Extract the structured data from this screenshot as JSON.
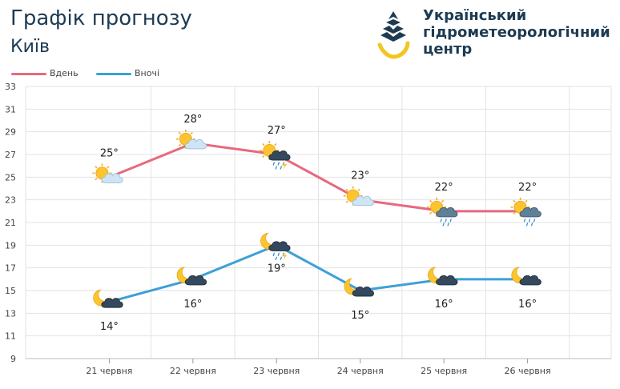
{
  "header": {
    "title": "Графік прогнозу",
    "city": "Київ"
  },
  "org": {
    "line1": "Український",
    "line2": "гідрометеорологічний",
    "line3": "центр"
  },
  "colors": {
    "day": "#e8687f",
    "night": "#3da0d6",
    "text": "#1d3b52",
    "grid": "#e3e3e3"
  },
  "chart_data": {
    "type": "line",
    "categories": [
      "21 червня",
      "22 червня",
      "23 червня",
      "24 червня",
      "25 червня",
      "26 червня"
    ],
    "series": [
      {
        "name": "Вдень",
        "values": [
          25,
          28,
          27,
          23,
          22,
          22
        ],
        "labels": [
          "25°",
          "28°",
          "27°",
          "23°",
          "22°",
          "22°"
        ],
        "icons": [
          "sun-cloud-icon",
          "sun-cloud-icon",
          "sun-cloud-rain-thunder-icon",
          "sun-cloud-icon",
          "sun-cloud-rain-icon",
          "sun-cloud-rain-icon"
        ]
      },
      {
        "name": "Вночі",
        "values": [
          14,
          16,
          19,
          15,
          16,
          16
        ],
        "labels": [
          "14°",
          "16°",
          "19°",
          "15°",
          "16°",
          "16°"
        ],
        "icons": [
          "moon-cloud-icon",
          "moon-cloud-icon",
          "moon-cloud-rain-thunder-icon",
          "moon-cloud-icon",
          "moon-cloud-icon",
          "moon-cloud-icon"
        ]
      }
    ],
    "ylim": [
      9,
      33
    ],
    "yticks": [
      9,
      11,
      13,
      15,
      17,
      19,
      21,
      23,
      25,
      27,
      29,
      31,
      33
    ],
    "grid": true,
    "legend": "top-left"
  }
}
